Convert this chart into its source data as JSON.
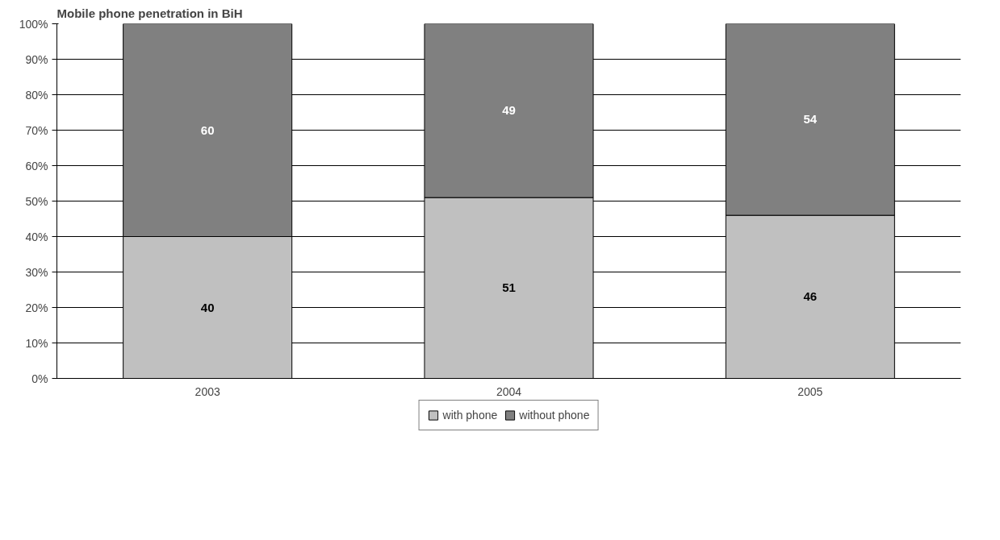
{
  "chart_data": {
    "type": "bar",
    "title": "Mobile phone penetration in BiH",
    "categories": [
      "2003",
      "2004",
      "2005"
    ],
    "stacked": true,
    "series": [
      {
        "name": "with phone",
        "color": "#c0c0c0",
        "values": [
          40,
          51,
          46
        ]
      },
      {
        "name": "without phone",
        "color": "#808080",
        "values": [
          60,
          49,
          54
        ]
      }
    ],
    "ylim": [
      0,
      100
    ],
    "yticks": [
      {
        "value": 0,
        "label": "0%"
      },
      {
        "value": 10,
        "label": "10%"
      },
      {
        "value": 20,
        "label": "20%"
      },
      {
        "value": 30,
        "label": "30%"
      },
      {
        "value": 40,
        "label": "40%"
      },
      {
        "value": 50,
        "label": "50%"
      },
      {
        "value": 60,
        "label": "60%"
      },
      {
        "value": 70,
        "label": "70%"
      },
      {
        "value": 80,
        "label": "80%"
      },
      {
        "value": 90,
        "label": "90%"
      },
      {
        "value": 100,
        "label": "100%"
      }
    ],
    "grid": "y",
    "legend": "bottom",
    "data_labels": true
  }
}
